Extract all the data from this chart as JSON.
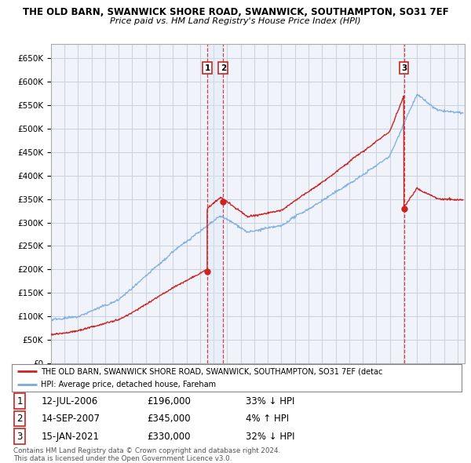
{
  "title1": "THE OLD BARN, SWANWICK SHORE ROAD, SWANWICK, SOUTHAMPTON, SO31 7EF",
  "title2": "Price paid vs. HM Land Registry's House Price Index (HPI)",
  "background_color": "#ffffff",
  "plot_bg_color": "#f0f4fa",
  "grid_color": "#c8d0dc",
  "hpi_color": "#7aaadd",
  "price_color": "#cc2222",
  "sale_marker_color": "#cc2222",
  "vline_color": "#cc2222",
  "vline_shade_color": "#dde8f5",
  "ylim": [
    0,
    680000
  ],
  "yticks": [
    0,
    50000,
    100000,
    150000,
    200000,
    250000,
    300000,
    350000,
    400000,
    450000,
    500000,
    550000,
    600000,
    650000
  ],
  "ytick_labels": [
    "£0",
    "£50K",
    "£100K",
    "£150K",
    "£200K",
    "£250K",
    "£300K",
    "£350K",
    "£400K",
    "£450K",
    "£500K",
    "£550K",
    "£600K",
    "£650K"
  ],
  "sale_dates": [
    2006.53,
    2007.71,
    2021.04
  ],
  "sale_prices": [
    196000,
    345000,
    330000
  ],
  "sale_labels": [
    "1",
    "2",
    "3"
  ],
  "legend_line1": "THE OLD BARN, SWANWICK SHORE ROAD, SWANWICK, SOUTHAMPTON, SO31 7EF (detac",
  "legend_line2": "HPI: Average price, detached house, Fareham",
  "table_rows": [
    {
      "num": "1",
      "date": "12-JUL-2006",
      "price": "£196,000",
      "pct": "33% ↓ HPI"
    },
    {
      "num": "2",
      "date": "14-SEP-2007",
      "price": "£345,000",
      "pct": "4% ↑ HPI"
    },
    {
      "num": "3",
      "date": "15-JAN-2021",
      "price": "£330,000",
      "pct": "32% ↓ HPI"
    }
  ],
  "footnote": "Contains HM Land Registry data © Crown copyright and database right 2024.\nThis data is licensed under the Open Government Licence v3.0.",
  "xmin": 1995,
  "xmax": 2025.5
}
